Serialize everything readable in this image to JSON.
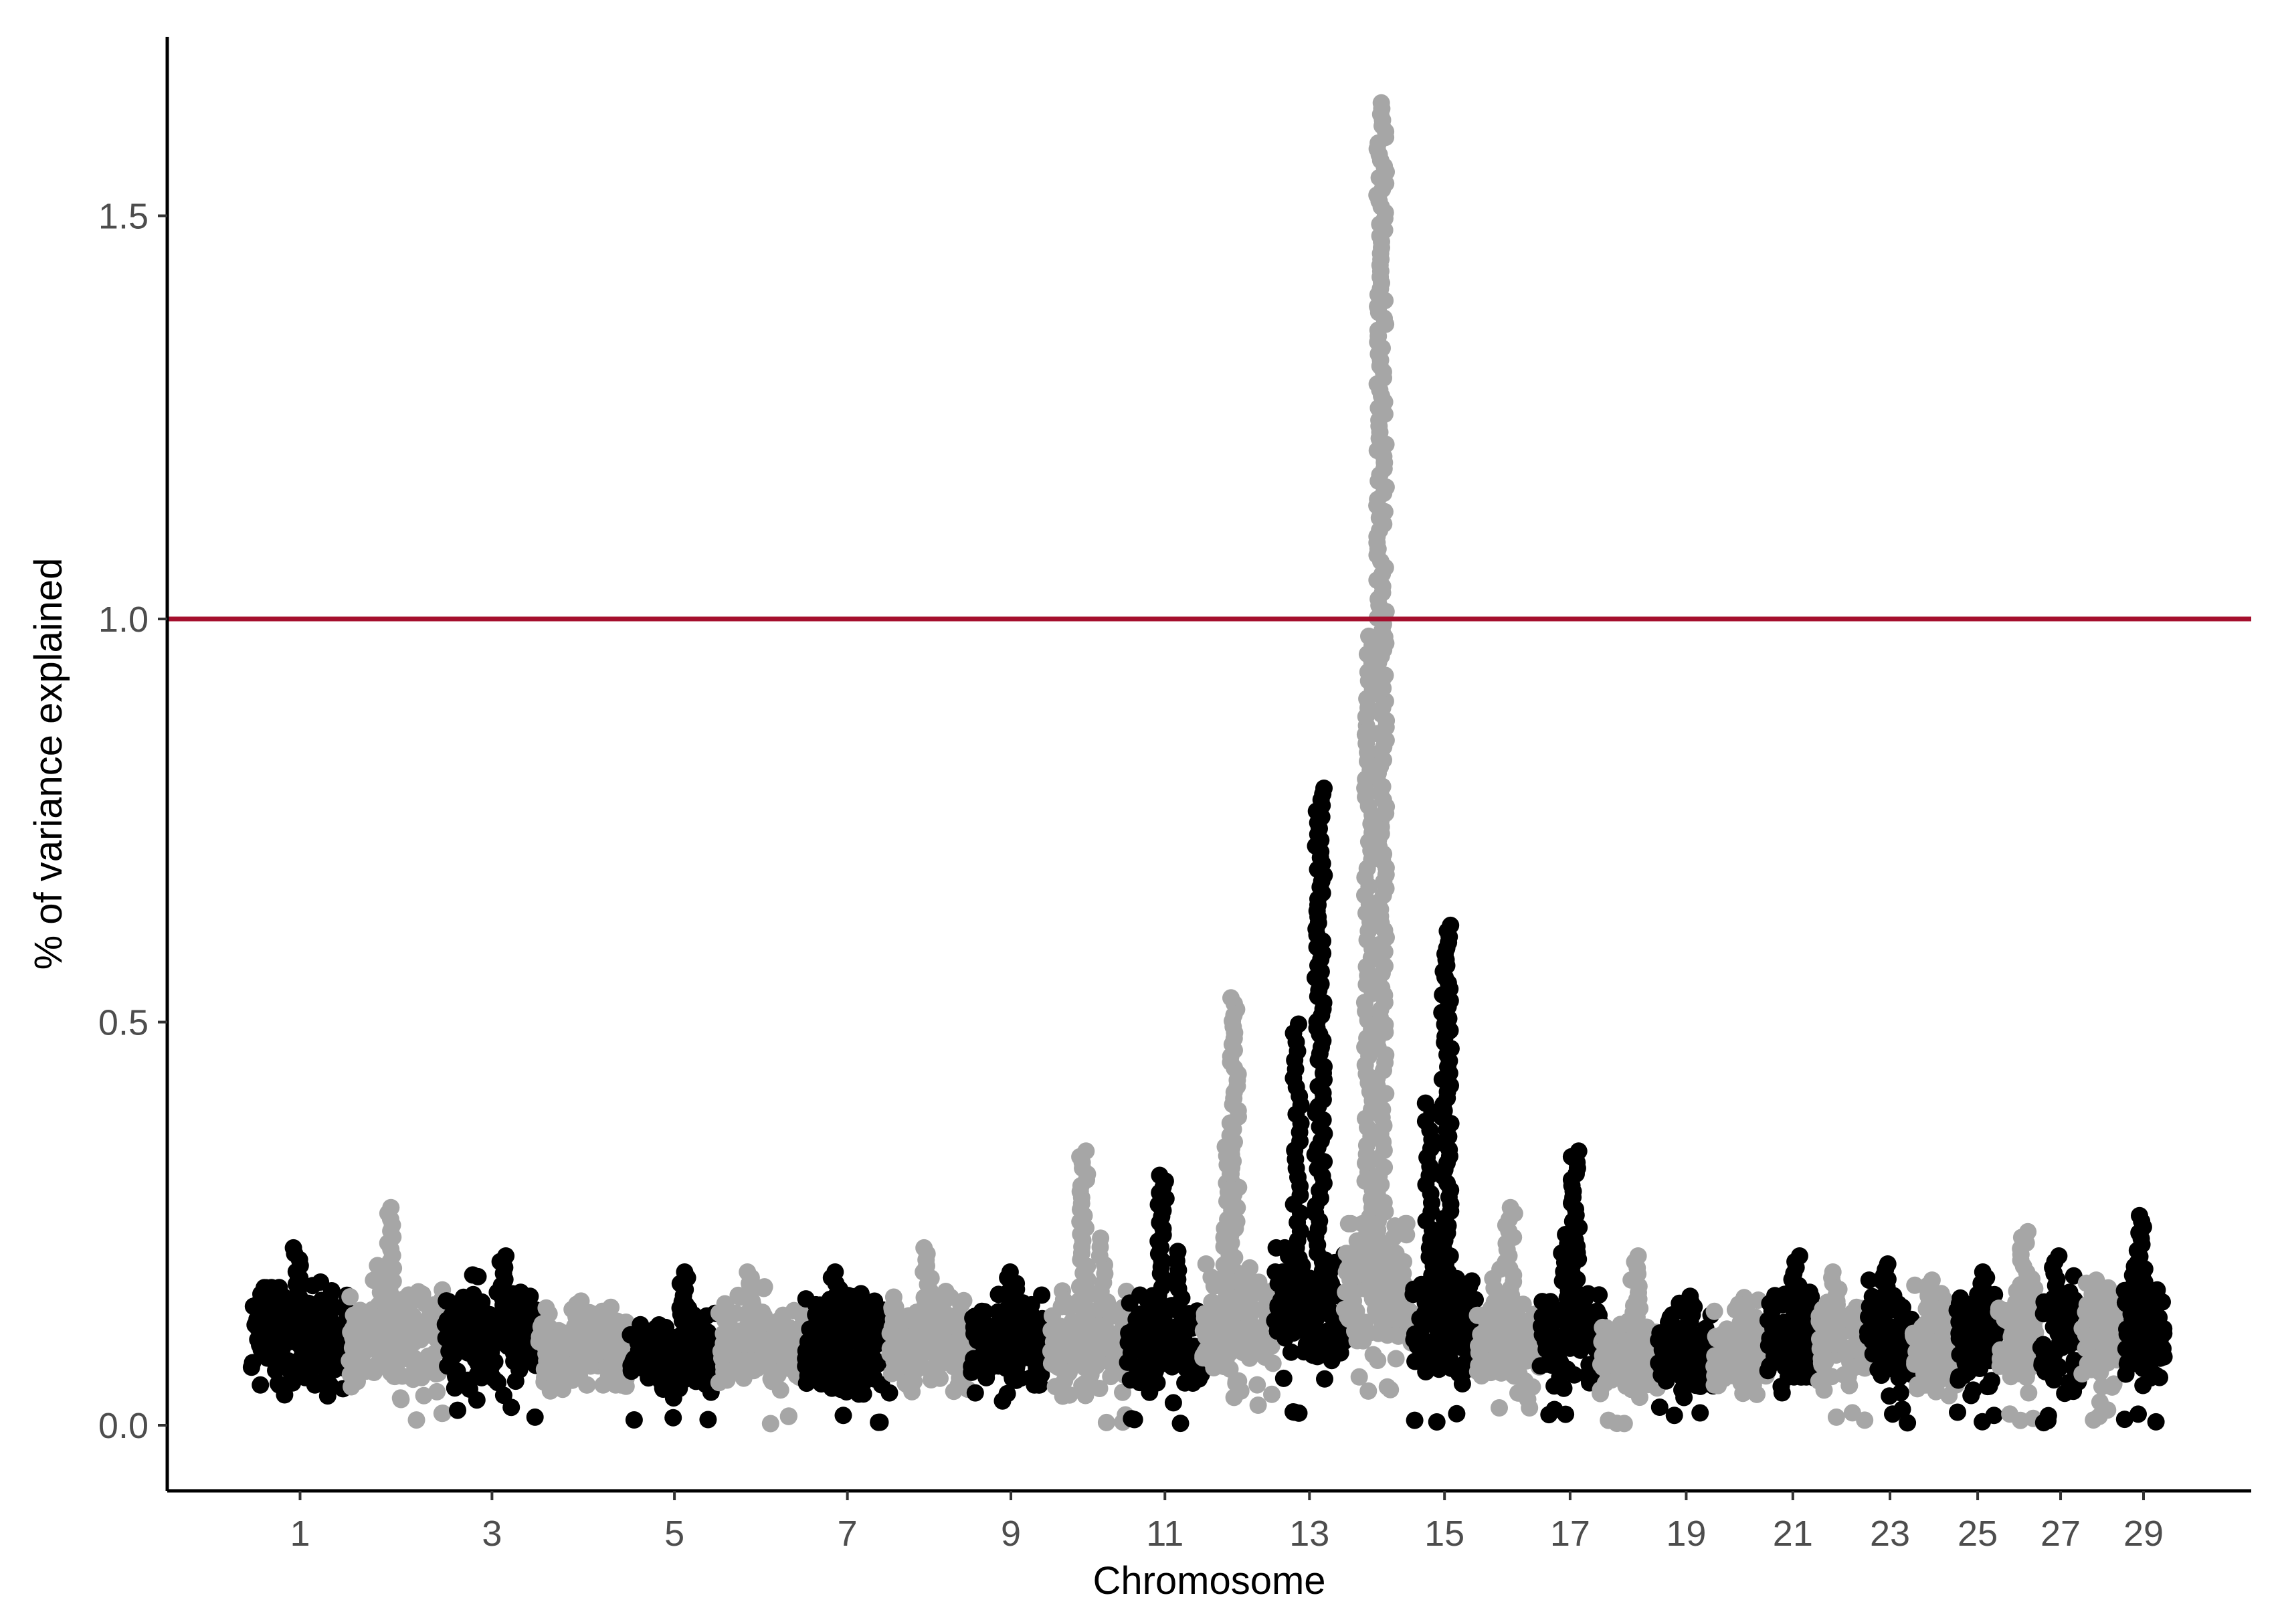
{
  "chart_data": {
    "type": "scatter",
    "title": "",
    "xlabel": "Chromosome",
    "ylabel": "% of variance explained",
    "ylim": [
      -0.08,
      1.72
    ],
    "yticks": [
      0.0,
      0.5,
      1.0,
      1.5
    ],
    "ytick_labels": [
      "0.0",
      "0.5",
      "1.0",
      "1.5"
    ],
    "xtick_labels": [
      "1",
      "3",
      "5",
      "7",
      "9",
      "11",
      "13",
      "15",
      "17",
      "19",
      "21",
      "23",
      "25",
      "27",
      "29"
    ],
    "threshold": {
      "y": 1.0,
      "color": "#a50f2d"
    },
    "grid": false,
    "legend": "none",
    "colors": {
      "odd": "#000000",
      "even": "#a6a6a6",
      "axis": "#000000"
    },
    "chromosomes": [
      {
        "chr": 1,
        "base": 0.11,
        "max": 0.22,
        "min": 0.03
      },
      {
        "chr": 2,
        "base": 0.11,
        "max": 0.27,
        "min": 0.0
      },
      {
        "chr": 3,
        "base": 0.11,
        "max": 0.21,
        "min": 0.01
      },
      {
        "chr": 4,
        "base": 0.09,
        "max": 0.15,
        "min": 0.03
      },
      {
        "chr": 5,
        "base": 0.09,
        "max": 0.19,
        "min": 0.0
      },
      {
        "chr": 6,
        "base": 0.1,
        "max": 0.19,
        "min": 0.0
      },
      {
        "chr": 7,
        "base": 0.1,
        "max": 0.19,
        "min": 0.0
      },
      {
        "chr": 8,
        "base": 0.1,
        "max": 0.22,
        "min": 0.03
      },
      {
        "chr": 9,
        "base": 0.1,
        "max": 0.19,
        "min": 0.03
      },
      {
        "chr": 10,
        "base": 0.1,
        "max": 0.34,
        "min": 0.0
      },
      {
        "chr": 11,
        "base": 0.1,
        "max": 0.31,
        "min": 0.0
      },
      {
        "chr": 12,
        "base": 0.12,
        "max": 0.53,
        "min": 0.02
      },
      {
        "chr": 13,
        "base": 0.14,
        "max": 0.79,
        "min": 0.0
      },
      {
        "chr": 14,
        "base": 0.17,
        "max": 1.64,
        "min": 0.03
      },
      {
        "chr": 15,
        "base": 0.13,
        "max": 0.62,
        "min": 0.0
      },
      {
        "chr": 16,
        "base": 0.1,
        "max": 0.27,
        "min": 0.02
      },
      {
        "chr": 17,
        "base": 0.11,
        "max": 0.34,
        "min": 0.0
      },
      {
        "chr": 18,
        "base": 0.09,
        "max": 0.21,
        "min": 0.0
      },
      {
        "chr": 19,
        "base": 0.09,
        "max": 0.16,
        "min": 0.01
      },
      {
        "chr": 20,
        "base": 0.09,
        "max": 0.15,
        "min": 0.03
      },
      {
        "chr": 21,
        "base": 0.11,
        "max": 0.21,
        "min": 0.04
      },
      {
        "chr": 22,
        "base": 0.1,
        "max": 0.19,
        "min": 0.0
      },
      {
        "chr": 23,
        "base": 0.11,
        "max": 0.2,
        "min": 0.0
      },
      {
        "chr": 24,
        "base": 0.1,
        "max": 0.18,
        "min": 0.03
      },
      {
        "chr": 25,
        "base": 0.1,
        "max": 0.19,
        "min": 0.0
      },
      {
        "chr": 26,
        "base": 0.11,
        "max": 0.24,
        "min": 0.0
      },
      {
        "chr": 27,
        "base": 0.11,
        "max": 0.21,
        "min": 0.0
      },
      {
        "chr": 28,
        "base": 0.11,
        "max": 0.18,
        "min": 0.0
      },
      {
        "chr": 29,
        "base": 0.12,
        "max": 0.26,
        "min": 0.0
      }
    ]
  }
}
